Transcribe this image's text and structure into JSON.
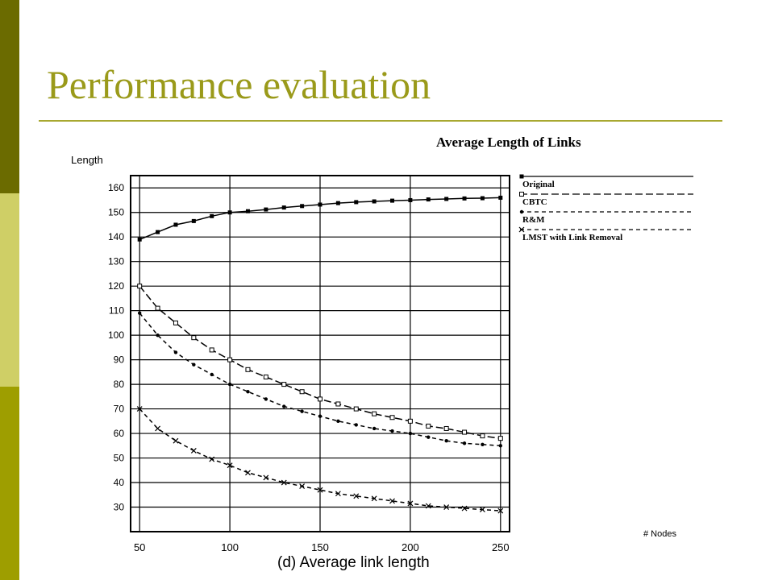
{
  "slide": {
    "title": "Performance evaluation",
    "colors": {
      "band_top": "#6b6b00",
      "band_mid": "#cfcf66",
      "band_bottom": "#9e9e00",
      "title": "#9a9a1a",
      "rule": "#a8a830"
    }
  },
  "chart_data": {
    "type": "line",
    "title": "Average Length of Links",
    "ylabel": "Length",
    "xlabel_right": "# Nodes",
    "caption": "(d)  Average link length",
    "xlim": [
      45,
      255
    ],
    "ylim": [
      20,
      165
    ],
    "x_ticks": [
      50,
      100,
      150,
      200,
      250
    ],
    "y_ticks": [
      30,
      40,
      50,
      60,
      70,
      80,
      90,
      100,
      110,
      120,
      130,
      140,
      150,
      160
    ],
    "grid": true,
    "legend_position": "right",
    "x": [
      50,
      60,
      70,
      80,
      90,
      100,
      110,
      120,
      130,
      140,
      150,
      160,
      170,
      180,
      190,
      200,
      210,
      220,
      230,
      240,
      250
    ],
    "series": [
      {
        "name": "Original",
        "dash": "solid",
        "marker": "filled-square",
        "values": [
          139,
          142,
          145,
          146.5,
          148.5,
          150,
          150.5,
          151.2,
          152,
          152.6,
          153.2,
          153.8,
          154.2,
          154.5,
          154.8,
          155,
          155.3,
          155.5,
          155.7,
          155.8,
          156
        ]
      },
      {
        "name": "CBTC",
        "dash": "long-dash",
        "marker": "square",
        "values": [
          120,
          111,
          105,
          99,
          94,
          90,
          86,
          83,
          80,
          77,
          74,
          72,
          70,
          68,
          66.5,
          65,
          63,
          62,
          60.5,
          59,
          58
        ]
      },
      {
        "name": "R&M",
        "dash": "dash",
        "marker": "dot",
        "values": [
          109,
          100,
          93,
          88,
          84,
          80,
          77,
          74,
          71,
          69,
          67,
          65,
          63.5,
          62,
          61,
          60,
          58.5,
          57,
          56,
          55.5,
          55
        ]
      },
      {
        "name": "LMST with Link Removal",
        "dash": "dash",
        "marker": "x",
        "values": [
          70,
          62,
          57,
          53,
          49.5,
          47,
          44,
          42,
          40,
          38.5,
          37,
          35.5,
          34.5,
          33.5,
          32.5,
          31.5,
          30.5,
          30,
          29.5,
          29,
          28.5
        ]
      }
    ]
  }
}
